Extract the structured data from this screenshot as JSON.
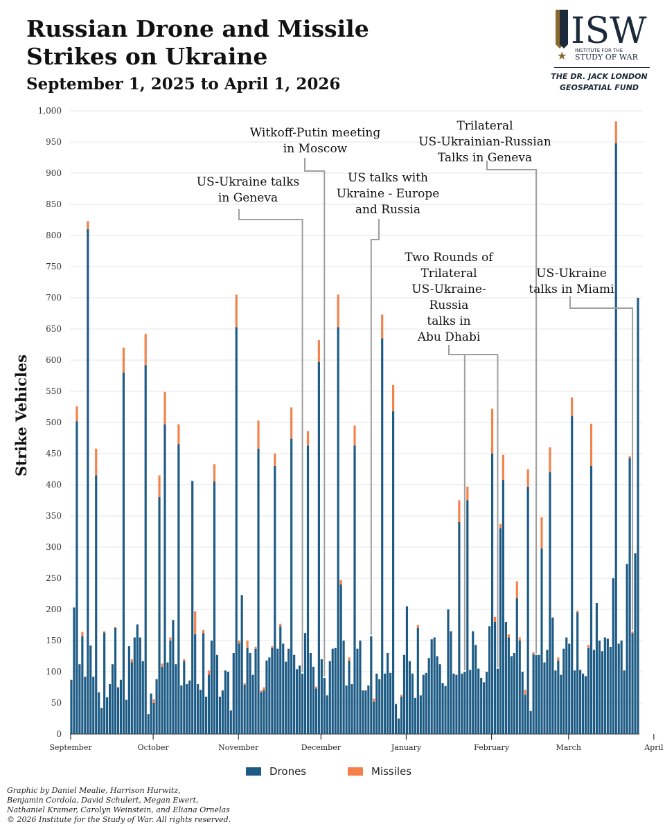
{
  "header": {
    "title_line1": "Russian Drone and Missile",
    "title_line2": "Strikes on Ukraine",
    "subtitle": "September 1, 2025 to April 1, 2026"
  },
  "logo": {
    "mark": "ISW",
    "line1": "INSTITUTE FOR THE",
    "line2": "STUDY OF WAR",
    "fund_line1": "THE DR. JACK LONDON",
    "fund_line2": "GEOSPATIAL FUND",
    "colors": {
      "navy": "#1b2a3a",
      "gold": "#8a6a2c"
    }
  },
  "legend": {
    "drones_label": "Drones",
    "missiles_label": "Missiles"
  },
  "credits": {
    "line1": "Graphic by Daniel Mealie, Harrison Hurwitz,",
    "line2": "Benjamin Cordola, David Schulert, Megan Ewert,",
    "line3": "Nathaniel Kramer, Carolyn Weinstein, and Eliana Ornelas",
    "line4": "© 2026 Institute for the Study of War. All rights reserved."
  },
  "chart_data": {
    "type": "bar",
    "stacked": true,
    "title": "Russian Drone and Missile Strikes on Ukraine",
    "ylabel": "Strike Vehicles",
    "ylim": [
      0,
      1000
    ],
    "yticks": [
      0,
      50,
      100,
      150,
      200,
      250,
      300,
      350,
      400,
      450,
      500,
      550,
      600,
      650,
      700,
      750,
      800,
      850,
      900,
      950,
      1000
    ],
    "ytick_labels": [
      "0",
      "50",
      "100",
      "150",
      "200",
      "250",
      "300",
      "350",
      "400",
      "450",
      "500",
      "550",
      "600",
      "650",
      "700",
      "750",
      "800",
      "850",
      "900",
      "950",
      "1,000"
    ],
    "grid": true,
    "colors": {
      "drones": "#1d5b85",
      "missiles": "#f4814a",
      "grid": "#e6e6e6",
      "annotation_line": "#9e9e9e"
    },
    "month_labels": [
      {
        "label": "September",
        "day_index": 0
      },
      {
        "label": "October",
        "day_index": 30
      },
      {
        "label": "November",
        "day_index": 61
      },
      {
        "label": "December",
        "day_index": 91
      },
      {
        "label": "January",
        "day_index": 122
      },
      {
        "label": "February",
        "day_index": 153
      },
      {
        "label": "March",
        "day_index": 181
      },
      {
        "label": "April",
        "day_index": 212
      }
    ],
    "series": [
      {
        "name": "Drones",
        "values": [
          87,
          203,
          502,
          112,
          157,
          92,
          810,
          142,
          92,
          415,
          67,
          42,
          163,
          59,
          80,
          112,
          170,
          75,
          87,
          580,
          55,
          141,
          115,
          155,
          176,
          155,
          117,
          592,
          32,
          65,
          50,
          88,
          380,
          108,
          497,
          115,
          150,
          183,
          112,
          465,
          78,
          117,
          80,
          86,
          406,
          160,
          80,
          71,
          162,
          60,
          95,
          150,
          405,
          127,
          60,
          70,
          102,
          100,
          38,
          130,
          653,
          145,
          223,
          79,
          138,
          130,
          95,
          137,
          458,
          67,
          70,
          118,
          123,
          138,
          430,
          137,
          173,
          145,
          116,
          137,
          474,
          127,
          104,
          110,
          97,
          162,
          463,
          130,
          108,
          73,
          597,
          120,
          90,
          62,
          117,
          137,
          138,
          653,
          240,
          150,
          78,
          118,
          80,
          463,
          137,
          150,
          70,
          70,
          78,
          157,
          52,
          97,
          88,
          635,
          97,
          130,
          98,
          518,
          48,
          25,
          60,
          127,
          205,
          117,
          97,
          58,
          170,
          62,
          95,
          98,
          122,
          152,
          155,
          125,
          112,
          82,
          77,
          200,
          165,
          97,
          95,
          340,
          97,
          100,
          375,
          103,
          165,
          143,
          105,
          90,
          83,
          100,
          173,
          450,
          180,
          105,
          330,
          408,
          180,
          155,
          125,
          130,
          218,
          150,
          100,
          63,
          397,
          37,
          128,
          127,
          127,
          298,
          115,
          135,
          420,
          187,
          102,
          118,
          95,
          137,
          155,
          145,
          510,
          102,
          195,
          103,
          97,
          93,
          138,
          430,
          135,
          210,
          150,
          133,
          155,
          153,
          140,
          250,
          948,
          145,
          150,
          102,
          273,
          443,
          162,
          290,
          700
        ]
      },
      {
        "name": "Missiles",
        "values": [
          0,
          0,
          24,
          0,
          7,
          0,
          13,
          0,
          0,
          43,
          0,
          0,
          2,
          0,
          0,
          0,
          2,
          0,
          0,
          40,
          0,
          0,
          5,
          0,
          0,
          0,
          0,
          50,
          0,
          0,
          6,
          0,
          35,
          5,
          52,
          0,
          5,
          0,
          0,
          32,
          0,
          3,
          0,
          0,
          0,
          37,
          0,
          0,
          5,
          0,
          7,
          0,
          28,
          0,
          0,
          0,
          0,
          0,
          0,
          0,
          52,
          5,
          0,
          3,
          12,
          0,
          0,
          3,
          45,
          3,
          5,
          0,
          0,
          3,
          20,
          0,
          4,
          0,
          0,
          0,
          50,
          0,
          0,
          0,
          0,
          0,
          23,
          0,
          0,
          3,
          35,
          0,
          0,
          0,
          0,
          0,
          0,
          52,
          7,
          0,
          0,
          5,
          0,
          32,
          0,
          0,
          0,
          0,
          0,
          0,
          5,
          0,
          0,
          38,
          0,
          0,
          0,
          42,
          0,
          0,
          3,
          0,
          0,
          0,
          0,
          0,
          5,
          0,
          0,
          0,
          0,
          0,
          0,
          0,
          0,
          0,
          0,
          0,
          0,
          0,
          0,
          35,
          0,
          0,
          22,
          0,
          0,
          0,
          0,
          0,
          0,
          0,
          0,
          72,
          8,
          0,
          7,
          40,
          0,
          5,
          0,
          0,
          27,
          5,
          0,
          8,
          28,
          0,
          3,
          0,
          0,
          50,
          0,
          0,
          40,
          0,
          0,
          5,
          0,
          0,
          0,
          0,
          30,
          0,
          3,
          0,
          0,
          0,
          5,
          68,
          0,
          0,
          0,
          0,
          0,
          0,
          0,
          0,
          35,
          0,
          0,
          0,
          0,
          3,
          3,
          0,
          0
        ]
      }
    ],
    "annotations": [
      {
        "lines": [
          "US-Ukraine talks",
          "in Geneva"
        ],
        "day_index": 84
      },
      {
        "lines": [
          "Witkoff-Putin meeting",
          "in Moscow"
        ],
        "day_index": 92
      },
      {
        "lines": [
          "US talks with",
          "Ukraine - Europe",
          "and Russia"
        ],
        "day_index": 109
      },
      {
        "lines": [
          "Trilateral",
          "US-Ukrainian-Russian",
          "Talks in Geneva"
        ],
        "day_index": 169
      },
      {
        "lines": [
          "Two Rounds of",
          "Trilateral",
          "US-Ukraine-",
          "Russia",
          "talks in",
          "Abu Dhabi"
        ],
        "day_indices": [
          143,
          155
        ]
      },
      {
        "lines": [
          "US-Ukraine",
          "talks in Miami"
        ],
        "day_index": 204
      }
    ]
  }
}
